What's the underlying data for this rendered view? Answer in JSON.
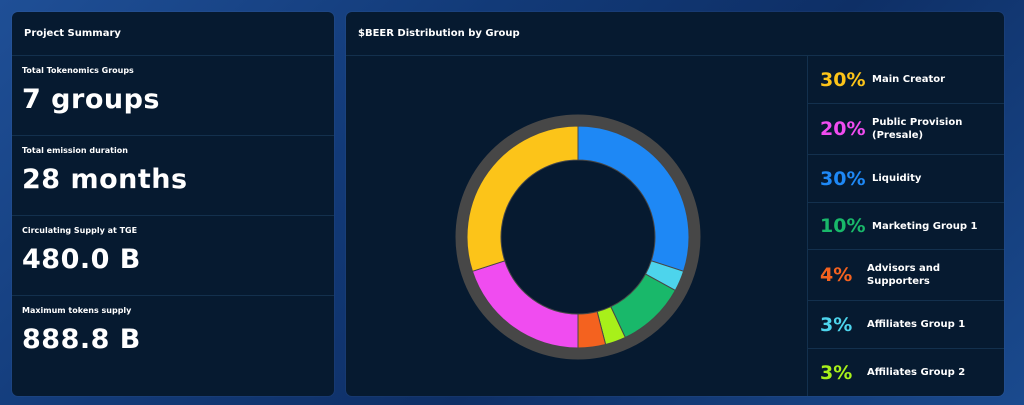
{
  "summary": {
    "title": "Project Summary",
    "stats": [
      {
        "label": "Total Tokenomics Groups",
        "value": "7 groups"
      },
      {
        "label": "Total emission duration",
        "value": "28 months"
      },
      {
        "label": "Circulating Supply at TGE",
        "value": "480.0 B"
      },
      {
        "label": "Maximum tokens supply",
        "value": "888.8 B"
      }
    ]
  },
  "distribution": {
    "title": "$BEER Distribution by Group",
    "legend": [
      {
        "percent": "30%",
        "name": "Main Creator",
        "color": "#fcc419"
      },
      {
        "percent": "20%",
        "name": "Public Provision (Presale)",
        "color": "#f04cf0"
      },
      {
        "percent": "30%",
        "name": "Liquidity",
        "color": "#1e88f5"
      },
      {
        "percent": "10%",
        "name": "Marketing Group 1",
        "color": "#19b86a"
      },
      {
        "percent": "4%",
        "name": "Advisors and Supporters",
        "color": "#f4621f"
      },
      {
        "percent": "3%",
        "name": "Affiliates Group 1",
        "color": "#4dd4ec"
      },
      {
        "percent": "3%",
        "name": "Affiliates Group 2",
        "color": "#a8f01a"
      }
    ]
  },
  "chart_data": {
    "type": "pie",
    "title": "$BEER Distribution by Group",
    "categories": [
      "Liquidity",
      "Affiliates Group 1",
      "Marketing Group 1",
      "Affiliates Group 2",
      "Advisors and Supporters",
      "Public Provision (Presale)",
      "Main Creator"
    ],
    "values": [
      30,
      3,
      10,
      3,
      4,
      20,
      30
    ],
    "colors": [
      "#1e88f5",
      "#4dd4ec",
      "#19b86a",
      "#a8f01a",
      "#f4621f",
      "#f04cf0",
      "#fcc419"
    ],
    "track_color": "#474747"
  }
}
